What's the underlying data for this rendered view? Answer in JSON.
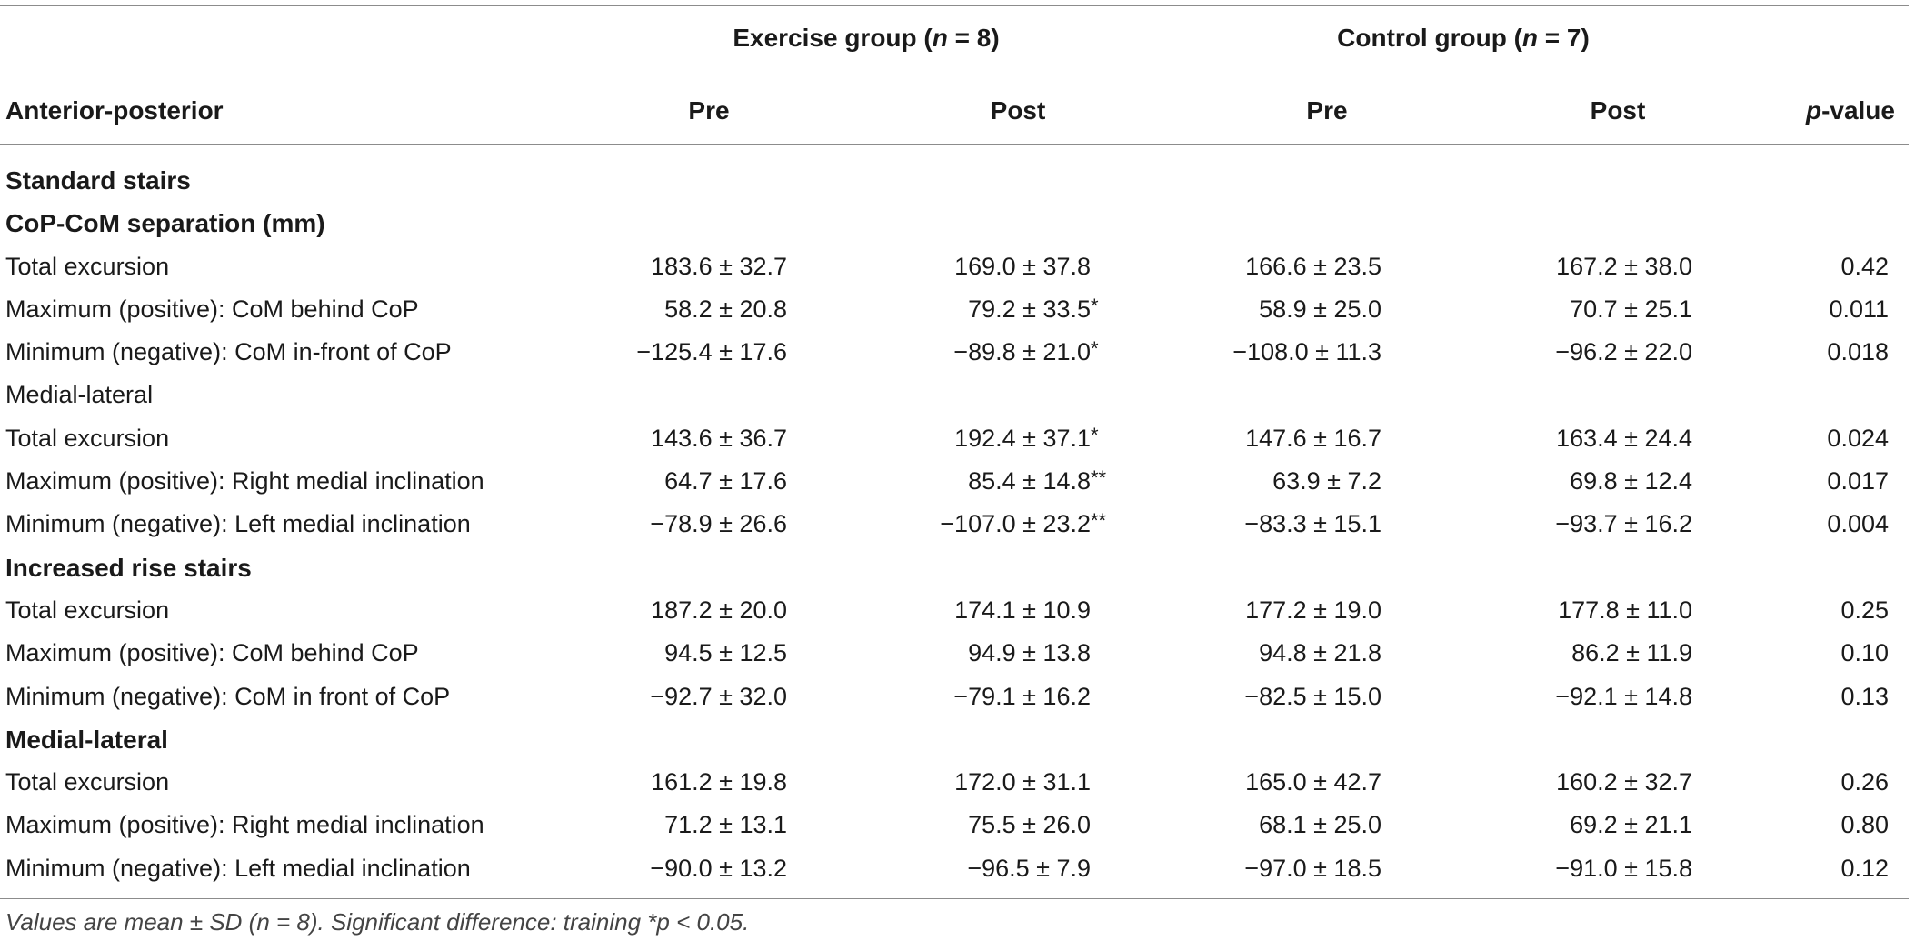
{
  "header": {
    "exercise_group_label": "Exercise group (",
    "exercise_group_n": "n",
    "exercise_group_tail": " = 8)",
    "control_group_label": "Control group (",
    "control_group_n": "n",
    "control_group_tail": " = 7)",
    "col_label": "Anterior-posterior",
    "col_pre_1": "Pre",
    "col_post_1": "Post",
    "col_pre_2": "Pre",
    "col_post_2": "Post",
    "col_p_italic": "p",
    "col_p_tail": "-value"
  },
  "rows": [
    {
      "label": "Standard stairs",
      "section": true
    },
    {
      "label": "CoP-CoM separation (mm)",
      "section": true
    },
    {
      "label": "Total excursion",
      "ex_pre": "183.6 ± 32.7",
      "ex_post": "169.0 ± 37.8",
      "ex_post_sig": "",
      "ctl_pre": "166.6 ± 23.5",
      "ctl_post": "167.2 ± 38.0",
      "p": "0.42"
    },
    {
      "label": "Maximum (positive): CoM behind CoP",
      "ex_pre": "58.2 ± 20.8",
      "ex_post": "79.2 ± 33.5",
      "ex_post_sig": "*",
      "ctl_pre": "58.9 ± 25.0",
      "ctl_post": "70.7 ± 25.1",
      "p": "0.011"
    },
    {
      "label": "Minimum (negative): CoM in-front of CoP",
      "ex_pre": "−125.4 ± 17.6",
      "ex_post": "−89.8 ± 21.0",
      "ex_post_sig": "*",
      "ctl_pre": "−108.0 ± 11.3",
      "ctl_post": "−96.2 ± 22.0",
      "p": "0.018"
    },
    {
      "label": "Medial-lateral",
      "section": false,
      "subhead": true
    },
    {
      "label": "Total excursion",
      "ex_pre": "143.6 ± 36.7",
      "ex_post": "192.4 ± 37.1",
      "ex_post_sig": "*",
      "ctl_pre": "147.6 ± 16.7",
      "ctl_post": "163.4 ± 24.4",
      "p": "0.024"
    },
    {
      "label": "Maximum (positive): Right medial inclination",
      "ex_pre": "64.7 ± 17.6",
      "ex_post": "85.4 ± 14.8",
      "ex_post_sig": "**",
      "ctl_pre": "63.9 ± 7.2",
      "ctl_post": "69.8 ± 12.4",
      "p": "0.017"
    },
    {
      "label": "Minimum (negative): Left medial inclination",
      "ex_pre": "−78.9 ± 26.6",
      "ex_post": "−107.0 ± 23.2",
      "ex_post_sig": "**",
      "ctl_pre": "−83.3 ± 15.1",
      "ctl_post": "−93.7 ± 16.2",
      "p": "0.004"
    },
    {
      "label": "Increased rise stairs",
      "section": true
    },
    {
      "label": "Total excursion",
      "ex_pre": "187.2 ± 20.0",
      "ex_post": "174.1 ± 10.9",
      "ex_post_sig": "",
      "ctl_pre": "177.2 ± 19.0",
      "ctl_post": "177.8 ± 11.0",
      "p": "0.25"
    },
    {
      "label": "Maximum (positive): CoM behind CoP",
      "ex_pre": "94.5 ± 12.5",
      "ex_post": "94.9 ± 13.8",
      "ex_post_sig": "",
      "ctl_pre": "94.8 ± 21.8",
      "ctl_post": "86.2 ± 11.9",
      "p": "0.10"
    },
    {
      "label": "Minimum (negative): CoM in front of CoP",
      "ex_pre": "−92.7 ± 32.0",
      "ex_post": "−79.1 ± 16.2",
      "ex_post_sig": "",
      "ctl_pre": "−82.5 ± 15.0",
      "ctl_post": "−92.1 ± 14.8",
      "p": "0.13"
    },
    {
      "label": "Medial-lateral",
      "section": true
    },
    {
      "label": "Total excursion",
      "ex_pre": "161.2 ± 19.8",
      "ex_post": "172.0 ± 31.1",
      "ex_post_sig": "",
      "ctl_pre": "165.0 ± 42.7",
      "ctl_post": "160.2 ± 32.7",
      "p": "0.26"
    },
    {
      "label": "Maximum (positive): Right medial inclination",
      "ex_pre": "71.2 ± 13.1",
      "ex_post": "75.5 ± 26.0",
      "ex_post_sig": "",
      "ctl_pre": "68.1 ± 25.0",
      "ctl_post": "69.2 ± 21.1",
      "p": "0.80"
    },
    {
      "label": "Minimum (negative): Left medial inclination",
      "ex_pre": "−90.0 ± 13.2",
      "ex_post": "−96.5 ± 7.9",
      "ex_post_sig": "",
      "ctl_pre": "−97.0 ± 18.5",
      "ctl_post": "−91.0 ± 15.8",
      "p": "0.12"
    }
  ],
  "footnote": "Values are mean ± SD (n = 8). Significant difference: training *p < 0.05."
}
